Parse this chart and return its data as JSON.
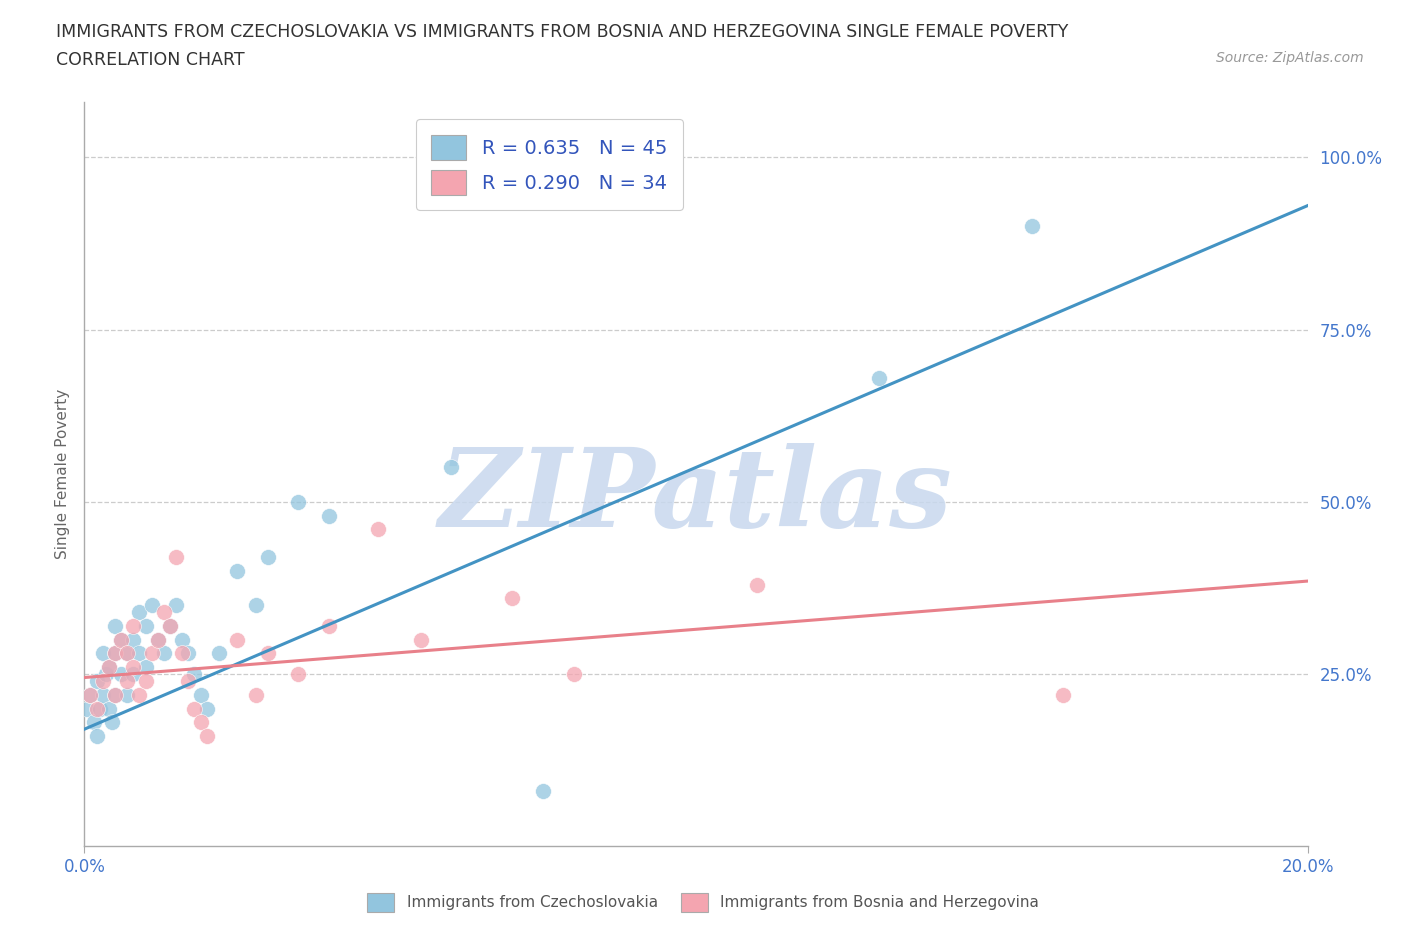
{
  "title_line1": "IMMIGRANTS FROM CZECHOSLOVAKIA VS IMMIGRANTS FROM BOSNIA AND HERZEGOVINA SINGLE FEMALE POVERTY",
  "title_line2": "CORRELATION CHART",
  "source": "Source: ZipAtlas.com",
  "ylabel": "Single Female Poverty",
  "x_min": 0.0,
  "x_max": 0.2,
  "y_min": 0.0,
  "y_max": 1.08,
  "blue_R": 0.635,
  "blue_N": 45,
  "pink_R": 0.29,
  "pink_N": 34,
  "blue_color": "#92c5de",
  "pink_color": "#f4a5b0",
  "blue_line_color": "#4393c3",
  "pink_line_color": "#e8808a",
  "watermark": "ZIPatlas",
  "watermark_color": "#c8d8ee",
  "legend_label_blue": "Immigrants from Czechoslovakia",
  "legend_label_pink": "Immigrants from Bosnia and Herzegovina",
  "blue_line_x0": 0.0,
  "blue_line_y0": 0.17,
  "blue_line_x1": 0.2,
  "blue_line_y1": 0.93,
  "pink_line_x0": 0.0,
  "pink_line_y0": 0.245,
  "pink_line_x1": 0.2,
  "pink_line_y1": 0.385,
  "blue_x": [
    0.0005,
    0.001,
    0.0015,
    0.002,
    0.002,
    0.0025,
    0.003,
    0.003,
    0.0035,
    0.004,
    0.004,
    0.0045,
    0.005,
    0.005,
    0.005,
    0.006,
    0.006,
    0.007,
    0.007,
    0.008,
    0.008,
    0.009,
    0.009,
    0.01,
    0.01,
    0.011,
    0.012,
    0.013,
    0.014,
    0.015,
    0.016,
    0.017,
    0.018,
    0.019,
    0.02,
    0.022,
    0.025,
    0.028,
    0.03,
    0.035,
    0.04,
    0.06,
    0.075,
    0.13,
    0.155
  ],
  "blue_y": [
    0.2,
    0.22,
    0.18,
    0.16,
    0.24,
    0.2,
    0.22,
    0.28,
    0.25,
    0.26,
    0.2,
    0.18,
    0.22,
    0.28,
    0.32,
    0.25,
    0.3,
    0.28,
    0.22,
    0.3,
    0.25,
    0.28,
    0.34,
    0.26,
    0.32,
    0.35,
    0.3,
    0.28,
    0.32,
    0.35,
    0.3,
    0.28,
    0.25,
    0.22,
    0.2,
    0.28,
    0.4,
    0.35,
    0.42,
    0.5,
    0.48,
    0.55,
    0.08,
    0.68,
    0.9
  ],
  "pink_x": [
    0.001,
    0.002,
    0.003,
    0.004,
    0.005,
    0.005,
    0.006,
    0.007,
    0.007,
    0.008,
    0.008,
    0.009,
    0.01,
    0.011,
    0.012,
    0.013,
    0.014,
    0.015,
    0.016,
    0.017,
    0.018,
    0.019,
    0.02,
    0.025,
    0.028,
    0.03,
    0.035,
    0.04,
    0.048,
    0.055,
    0.07,
    0.08,
    0.11,
    0.16
  ],
  "pink_y": [
    0.22,
    0.2,
    0.24,
    0.26,
    0.28,
    0.22,
    0.3,
    0.24,
    0.28,
    0.26,
    0.32,
    0.22,
    0.24,
    0.28,
    0.3,
    0.34,
    0.32,
    0.42,
    0.28,
    0.24,
    0.2,
    0.18,
    0.16,
    0.3,
    0.22,
    0.28,
    0.25,
    0.32,
    0.46,
    0.3,
    0.36,
    0.25,
    0.38,
    0.22
  ]
}
